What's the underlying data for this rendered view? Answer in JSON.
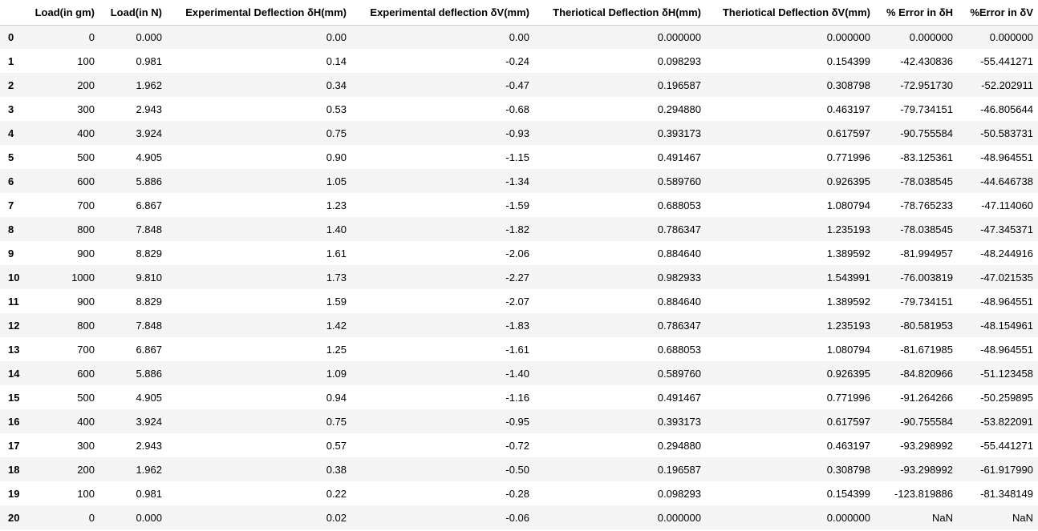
{
  "table": {
    "columns": [
      "",
      "Load(in gm)",
      "Load(in N)",
      "Experimental Deflection δH(mm)",
      "Experimental deflection δV(mm)",
      "Theriotical Deflection δH(mm)",
      "Theriotical Deflection δV(mm)",
      "% Error in δH",
      "%Error in δV"
    ],
    "rows": [
      [
        "0",
        "0",
        "0.000",
        "0.00",
        "0.00",
        "0.000000",
        "0.000000",
        "0.000000",
        "0.000000"
      ],
      [
        "1",
        "100",
        "0.981",
        "0.14",
        "-0.24",
        "0.098293",
        "0.154399",
        "-42.430836",
        "-55.441271"
      ],
      [
        "2",
        "200",
        "1.962",
        "0.34",
        "-0.47",
        "0.196587",
        "0.308798",
        "-72.951730",
        "-52.202911"
      ],
      [
        "3",
        "300",
        "2.943",
        "0.53",
        "-0.68",
        "0.294880",
        "0.463197",
        "-79.734151",
        "-46.805644"
      ],
      [
        "4",
        "400",
        "3.924",
        "0.75",
        "-0.93",
        "0.393173",
        "0.617597",
        "-90.755584",
        "-50.583731"
      ],
      [
        "5",
        "500",
        "4.905",
        "0.90",
        "-1.15",
        "0.491467",
        "0.771996",
        "-83.125361",
        "-48.964551"
      ],
      [
        "6",
        "600",
        "5.886",
        "1.05",
        "-1.34",
        "0.589760",
        "0.926395",
        "-78.038545",
        "-44.646738"
      ],
      [
        "7",
        "700",
        "6.867",
        "1.23",
        "-1.59",
        "0.688053",
        "1.080794",
        "-78.765233",
        "-47.114060"
      ],
      [
        "8",
        "800",
        "7.848",
        "1.40",
        "-1.82",
        "0.786347",
        "1.235193",
        "-78.038545",
        "-47.345371"
      ],
      [
        "9",
        "900",
        "8.829",
        "1.61",
        "-2.06",
        "0.884640",
        "1.389592",
        "-81.994957",
        "-48.244916"
      ],
      [
        "10",
        "1000",
        "9.810",
        "1.73",
        "-2.27",
        "0.982933",
        "1.543991",
        "-76.003819",
        "-47.021535"
      ],
      [
        "11",
        "900",
        "8.829",
        "1.59",
        "-2.07",
        "0.884640",
        "1.389592",
        "-79.734151",
        "-48.964551"
      ],
      [
        "12",
        "800",
        "7.848",
        "1.42",
        "-1.83",
        "0.786347",
        "1.235193",
        "-80.581953",
        "-48.154961"
      ],
      [
        "13",
        "700",
        "6.867",
        "1.25",
        "-1.61",
        "0.688053",
        "1.080794",
        "-81.671985",
        "-48.964551"
      ],
      [
        "14",
        "600",
        "5.886",
        "1.09",
        "-1.40",
        "0.589760",
        "0.926395",
        "-84.820966",
        "-51.123458"
      ],
      [
        "15",
        "500",
        "4.905",
        "0.94",
        "-1.16",
        "0.491467",
        "0.771996",
        "-91.264266",
        "-50.259895"
      ],
      [
        "16",
        "400",
        "3.924",
        "0.75",
        "-0.95",
        "0.393173",
        "0.617597",
        "-90.755584",
        "-53.822091"
      ],
      [
        "17",
        "300",
        "2.943",
        "0.57",
        "-0.72",
        "0.294880",
        "0.463197",
        "-93.298992",
        "-55.441271"
      ],
      [
        "18",
        "200",
        "1.962",
        "0.38",
        "-0.50",
        "0.196587",
        "0.308798",
        "-93.298992",
        "-61.917990"
      ],
      [
        "19",
        "100",
        "0.981",
        "0.22",
        "-0.28",
        "0.098293",
        "0.154399",
        "-123.819886",
        "-81.348149"
      ],
      [
        "20",
        "0",
        "0.000",
        "0.02",
        "-0.06",
        "0.000000",
        "0.000000",
        "NaN",
        "NaN"
      ]
    ]
  }
}
